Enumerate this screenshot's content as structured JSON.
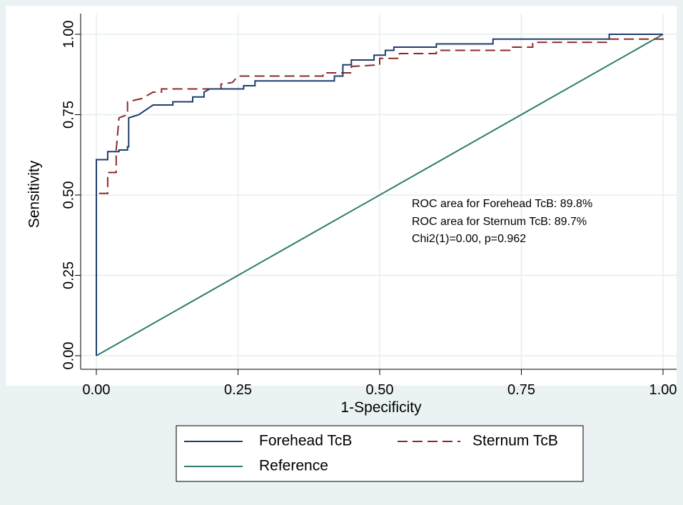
{
  "chart_data": {
    "type": "line",
    "xlabel": "1-Specificity",
    "ylabel": "Sensitivity",
    "xlim": [
      0,
      1
    ],
    "ylim": [
      0,
      1
    ],
    "x_ticks": [
      "0.00",
      "0.25",
      "0.50",
      "0.75",
      "1.00"
    ],
    "y_ticks": [
      "0.00",
      "0.25",
      "0.50",
      "0.75",
      "1.00"
    ],
    "grid": true,
    "legend_position": "bottom",
    "annotations": [
      "ROC area for Forehead TcB: 89.8%",
      "ROC area for Sternum TcB: 89.7%",
      "Chi2(1)=0.00, p=0.962"
    ],
    "series": [
      {
        "name": "Forehead TcB",
        "color": "#1f3e6e",
        "style": "solid",
        "points": [
          [
            0,
            0
          ],
          [
            0,
            0.61
          ],
          [
            0.01,
            0.61
          ],
          [
            0.01,
            0.61
          ],
          [
            0.02,
            0.61
          ],
          [
            0.02,
            0.635
          ],
          [
            0.04,
            0.635
          ],
          [
            0.04,
            0.64
          ],
          [
            0.055,
            0.64
          ],
          [
            0.055,
            0.65
          ],
          [
            0.057,
            0.65
          ],
          [
            0.057,
            0.74
          ],
          [
            0.075,
            0.75
          ],
          [
            0.1,
            0.78
          ],
          [
            0.135,
            0.78
          ],
          [
            0.135,
            0.79
          ],
          [
            0.17,
            0.79
          ],
          [
            0.17,
            0.805
          ],
          [
            0.19,
            0.805
          ],
          [
            0.19,
            0.82
          ],
          [
            0.2,
            0.83
          ],
          [
            0.26,
            0.83
          ],
          [
            0.26,
            0.84
          ],
          [
            0.28,
            0.84
          ],
          [
            0.28,
            0.855
          ],
          [
            0.42,
            0.855
          ],
          [
            0.42,
            0.87
          ],
          [
            0.435,
            0.87
          ],
          [
            0.435,
            0.905
          ],
          [
            0.45,
            0.905
          ],
          [
            0.45,
            0.92
          ],
          [
            0.49,
            0.92
          ],
          [
            0.49,
            0.935
          ],
          [
            0.51,
            0.935
          ],
          [
            0.51,
            0.95
          ],
          [
            0.525,
            0.95
          ],
          [
            0.525,
            0.96
          ],
          [
            0.6,
            0.96
          ],
          [
            0.6,
            0.97
          ],
          [
            0.7,
            0.97
          ],
          [
            0.7,
            0.985
          ],
          [
            0.905,
            0.985
          ],
          [
            0.905,
            1
          ],
          [
            1,
            1
          ]
        ]
      },
      {
        "name": "Sternum TcB",
        "color": "#8c2a2a",
        "style": "dashed",
        "points": [
          [
            0,
            0
          ],
          [
            0,
            0.505
          ],
          [
            0.02,
            0.505
          ],
          [
            0.02,
            0.57
          ],
          [
            0.035,
            0.57
          ],
          [
            0.035,
            0.64
          ],
          [
            0.04,
            0.74
          ],
          [
            0.055,
            0.75
          ],
          [
            0.055,
            0.79
          ],
          [
            0.08,
            0.8
          ],
          [
            0.1,
            0.82
          ],
          [
            0.115,
            0.82
          ],
          [
            0.115,
            0.83
          ],
          [
            0.22,
            0.83
          ],
          [
            0.22,
            0.845
          ],
          [
            0.24,
            0.85
          ],
          [
            0.25,
            0.87
          ],
          [
            0.4,
            0.87
          ],
          [
            0.4,
            0.88
          ],
          [
            0.45,
            0.88
          ],
          [
            0.45,
            0.9
          ],
          [
            0.5,
            0.905
          ],
          [
            0.5,
            0.925
          ],
          [
            0.535,
            0.925
          ],
          [
            0.535,
            0.94
          ],
          [
            0.6,
            0.94
          ],
          [
            0.6,
            0.95
          ],
          [
            0.73,
            0.95
          ],
          [
            0.73,
            0.96
          ],
          [
            0.77,
            0.96
          ],
          [
            0.77,
            0.975
          ],
          [
            0.905,
            0.975
          ],
          [
            0.905,
            0.985
          ],
          [
            1,
            0.985
          ],
          [
            1,
            1
          ]
        ]
      },
      {
        "name": "Reference",
        "color": "#2e7d6e",
        "style": "solid",
        "points": [
          [
            0,
            0
          ],
          [
            1,
            1
          ]
        ]
      }
    ]
  }
}
